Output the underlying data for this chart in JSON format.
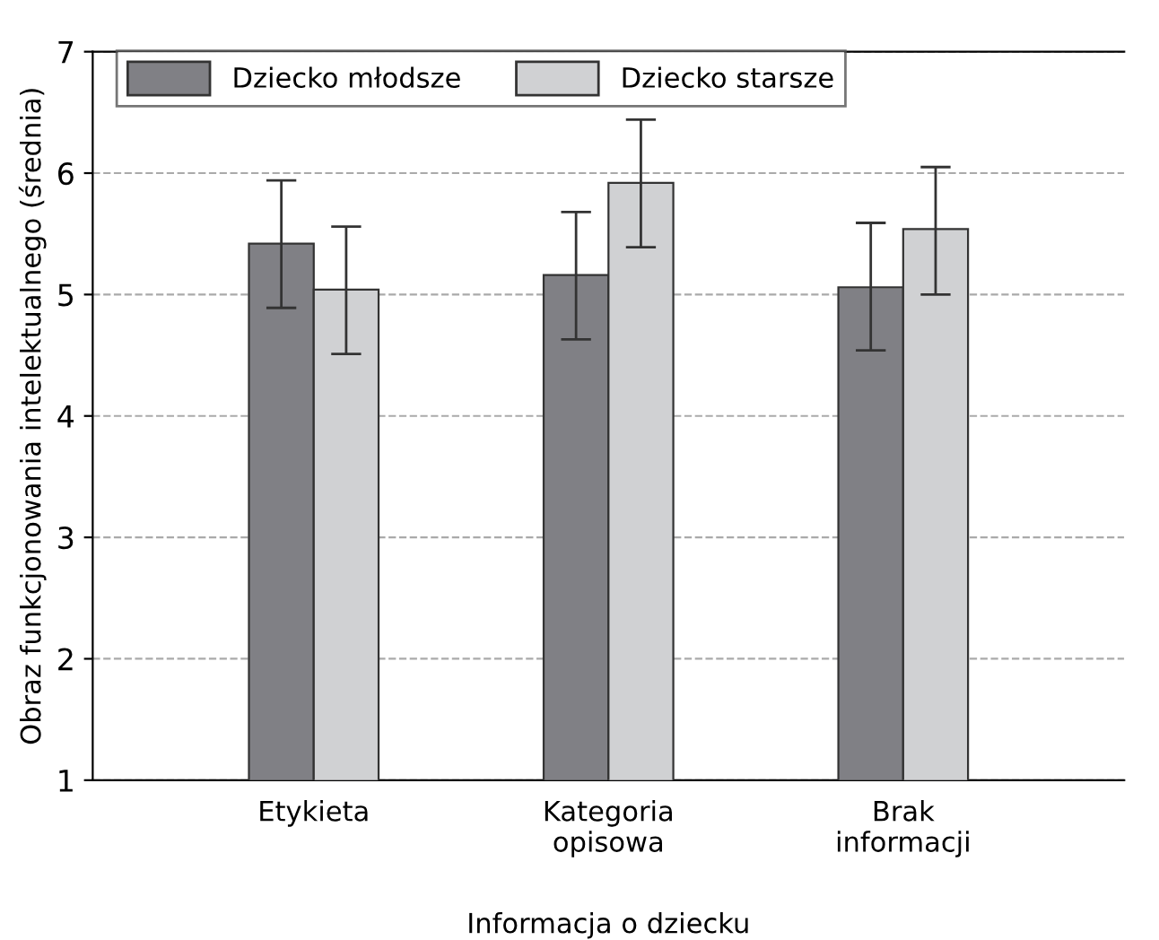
{
  "chart_data": {
    "type": "bar",
    "xlabel": "Informacja o dziecku",
    "ylabel": "Obraz funkcjonowania intelektualnego (średnia)",
    "categories": [
      "Etykieta",
      "Kategoria\nopisowa",
      "Brak\ninformacji"
    ],
    "series": [
      {
        "name": "Dziecko młodsze",
        "color": "#808085",
        "values": [
          5.42,
          5.16,
          5.06
        ],
        "errors": [
          [
            4.89,
            5.94
          ],
          [
            4.63,
            5.68
          ],
          [
            4.54,
            5.59
          ]
        ]
      },
      {
        "name": "Dziecko starsze",
        "color": "#d0d1d3",
        "values": [
          5.04,
          5.92,
          5.54
        ],
        "errors": [
          [
            4.51,
            5.56
          ],
          [
            5.39,
            6.44
          ],
          [
            5.0,
            6.05
          ]
        ]
      }
    ],
    "ylim": [
      1,
      7
    ],
    "yticks": [
      1,
      2,
      3,
      4,
      5,
      6,
      7
    ],
    "grid": "y",
    "legend": "top left"
  }
}
